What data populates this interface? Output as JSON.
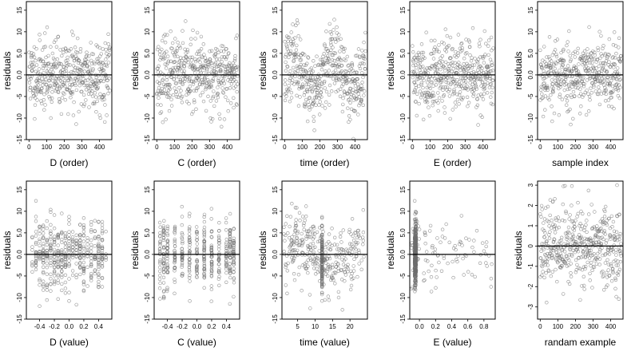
{
  "chart_data": [
    {
      "type": "scatter",
      "xlabel": "D (order)",
      "ylabel": "residuals",
      "xlim": [
        -15,
        470
      ],
      "ylim": [
        -15,
        17
      ],
      "xticks": [
        {
          "v": 0,
          "label": "0"
        },
        {
          "v": 100,
          "label": "100"
        },
        {
          "v": 200,
          "label": "200"
        },
        {
          "v": 300,
          "label": "300"
        },
        {
          "v": 400,
          "label": "400"
        }
      ],
      "yticks": [
        {
          "v": -15,
          "label": "-15"
        },
        {
          "v": -10,
          "label": "-10"
        },
        {
          "v": -5,
          "label": "-5"
        },
        {
          "v": 0,
          "label": "0.0"
        },
        {
          "v": 5,
          "label": "5.0"
        },
        {
          "v": 10,
          "label": "10"
        },
        {
          "v": 15,
          "label": "15"
        }
      ],
      "hline": 0,
      "n": 460,
      "x_kind": "index",
      "seed": 11,
      "spread": 4.5
    },
    {
      "type": "scatter",
      "xlabel": "C (order)",
      "ylabel": "residuals",
      "xlim": [
        -15,
        470
      ],
      "ylim": [
        -15,
        17
      ],
      "xticks": [
        {
          "v": 0,
          "label": "0"
        },
        {
          "v": 100,
          "label": "100"
        },
        {
          "v": 200,
          "label": "200"
        },
        {
          "v": 300,
          "label": "300"
        },
        {
          "v": 400,
          "label": "400"
        }
      ],
      "yticks": [
        {
          "v": -15,
          "label": "-15"
        },
        {
          "v": -10,
          "label": "-10"
        },
        {
          "v": -5,
          "label": "-5"
        },
        {
          "v": 0,
          "label": "0.0"
        },
        {
          "v": 5,
          "label": "5.0"
        },
        {
          "v": 10,
          "label": "10"
        },
        {
          "v": 15,
          "label": "15"
        }
      ],
      "hline": 0,
      "n": 460,
      "x_kind": "index",
      "seed": 23,
      "spread": 4.5
    },
    {
      "type": "scatter",
      "xlabel": "time (order)",
      "ylabel": "residuals",
      "xlim": [
        -15,
        470
      ],
      "ylim": [
        -15,
        17
      ],
      "xticks": [
        {
          "v": 0,
          "label": "0"
        },
        {
          "v": 100,
          "label": "100"
        },
        {
          "v": 200,
          "label": "200"
        },
        {
          "v": 300,
          "label": "300"
        },
        {
          "v": 400,
          "label": "400"
        }
      ],
      "yticks": [
        {
          "v": -15,
          "label": "-15"
        },
        {
          "v": -10,
          "label": "-10"
        },
        {
          "v": -5,
          "label": "-5"
        },
        {
          "v": 0,
          "label": "0.0"
        },
        {
          "v": 5,
          "label": "5.0"
        },
        {
          "v": 10,
          "label": "10"
        },
        {
          "v": 15,
          "label": "15"
        }
      ],
      "hline": 0,
      "n": 460,
      "x_kind": "index_wave",
      "seed": 37,
      "spread": 4.5
    },
    {
      "type": "scatter",
      "xlabel": "E (order)",
      "ylabel": "residuals",
      "xlim": [
        -15,
        470
      ],
      "ylim": [
        -15,
        17
      ],
      "xticks": [
        {
          "v": 0,
          "label": "0"
        },
        {
          "v": 100,
          "label": "100"
        },
        {
          "v": 200,
          "label": "200"
        },
        {
          "v": 300,
          "label": "300"
        },
        {
          "v": 400,
          "label": "400"
        }
      ],
      "yticks": [
        {
          "v": -15,
          "label": "-15"
        },
        {
          "v": -10,
          "label": "-10"
        },
        {
          "v": -5,
          "label": "-5"
        },
        {
          "v": 0,
          "label": "0.0"
        },
        {
          "v": 5,
          "label": "5.0"
        },
        {
          "v": 10,
          "label": "10"
        },
        {
          "v": 15,
          "label": "15"
        }
      ],
      "hline": 0,
      "n": 460,
      "x_kind": "index",
      "seed": 41,
      "spread": 4.5
    },
    {
      "type": "scatter",
      "xlabel": "sample index",
      "ylabel": "residuals",
      "xlim": [
        -15,
        470
      ],
      "ylim": [
        -15,
        17
      ],
      "xticks": [
        {
          "v": 0,
          "label": "0"
        },
        {
          "v": 100,
          "label": "100"
        },
        {
          "v": 200,
          "label": "200"
        },
        {
          "v": 300,
          "label": "300"
        },
        {
          "v": 400,
          "label": "400"
        }
      ],
      "yticks": [
        {
          "v": -15,
          "label": "-15"
        },
        {
          "v": -10,
          "label": "-10"
        },
        {
          "v": -5,
          "label": "-5"
        },
        {
          "v": 0,
          "label": "0.0"
        },
        {
          "v": 5,
          "label": "5.0"
        },
        {
          "v": 10,
          "label": "10"
        },
        {
          "v": 15,
          "label": "15"
        }
      ],
      "hline": 0,
      "n": 460,
      "x_kind": "index",
      "seed": 53,
      "spread": 4.5
    },
    {
      "type": "scatter",
      "xlabel": "D (value)",
      "ylabel": "residuals",
      "xlim": [
        -0.58,
        0.58
      ],
      "ylim": [
        -15,
        17
      ],
      "xticks": [
        {
          "v": -0.4,
          "label": "-0.4"
        },
        {
          "v": -0.2,
          "label": "-0.2"
        },
        {
          "v": 0,
          "label": "0.0"
        },
        {
          "v": 0.2,
          "label": "0.2"
        },
        {
          "v": 0.4,
          "label": "0.4"
        }
      ],
      "yticks": [
        {
          "v": -15,
          "label": "-15"
        },
        {
          "v": -10,
          "label": "-10"
        },
        {
          "v": -5,
          "label": "-5"
        },
        {
          "v": 0,
          "label": "0.0"
        },
        {
          "v": 5,
          "label": "5.0"
        },
        {
          "v": 10,
          "label": "10"
        },
        {
          "v": 15,
          "label": "15"
        }
      ],
      "hline": 0,
      "n": 460,
      "x_kind": "discrete_dense",
      "x_min": -0.5,
      "x_max": 0.5,
      "seed": 61,
      "spread": 4.5
    },
    {
      "type": "scatter",
      "xlabel": "C (value)",
      "ylabel": "residuals",
      "xlim": [
        -0.58,
        0.58
      ],
      "ylim": [
        -15,
        17
      ],
      "xticks": [
        {
          "v": -0.4,
          "label": "-0.4"
        },
        {
          "v": -0.2,
          "label": "-0.2"
        },
        {
          "v": 0,
          "label": "0.0"
        },
        {
          "v": 0.2,
          "label": "0.2"
        },
        {
          "v": 0.4,
          "label": "0.4"
        }
      ],
      "yticks": [
        {
          "v": -15,
          "label": "-15"
        },
        {
          "v": -10,
          "label": "-10"
        },
        {
          "v": -5,
          "label": "-5"
        },
        {
          "v": 0,
          "label": "0.0"
        },
        {
          "v": 5,
          "label": "5.0"
        },
        {
          "v": 10,
          "label": "10"
        },
        {
          "v": 15,
          "label": "15"
        }
      ],
      "hline": 0,
      "n": 460,
      "x_kind": "discrete_columns",
      "x_values": [
        -0.5,
        -0.45,
        -0.4,
        -0.3,
        -0.2,
        -0.1,
        0.0,
        0.1,
        0.2,
        0.3,
        0.4,
        0.45,
        0.5
      ],
      "seed": 71,
      "spread": 4.5
    },
    {
      "type": "scatter",
      "xlabel": "time (value)",
      "ylabel": "residuals",
      "xlim": [
        0.5,
        25
      ],
      "ylim": [
        -15,
        17
      ],
      "xticks": [
        {
          "v": 5,
          "label": "5"
        },
        {
          "v": 10,
          "label": "10"
        },
        {
          "v": 15,
          "label": "15"
        },
        {
          "v": 20,
          "label": "20"
        }
      ],
      "yticks": [
        {
          "v": -15,
          "label": "-15"
        },
        {
          "v": -10,
          "label": "-10"
        },
        {
          "v": -5,
          "label": "-5"
        },
        {
          "v": 0,
          "label": "0.0"
        },
        {
          "v": 5,
          "label": "5.0"
        },
        {
          "v": 10,
          "label": "10"
        },
        {
          "v": 15,
          "label": "15"
        }
      ],
      "hline": 0,
      "n": 460,
      "x_kind": "time_values",
      "x_min": 1,
      "x_max": 24,
      "seed": 83,
      "spread": 4.5
    },
    {
      "type": "scatter",
      "xlabel": "E (value)",
      "ylabel": "residuals",
      "xlim": [
        -0.12,
        0.94
      ],
      "ylim": [
        -15,
        17
      ],
      "xticks": [
        {
          "v": 0.0,
          "label": "0.0"
        },
        {
          "v": 0.2,
          "label": "0.2"
        },
        {
          "v": 0.4,
          "label": "0.4"
        },
        {
          "v": 0.6,
          "label": "0.6"
        },
        {
          "v": 0.8,
          "label": "0.8"
        }
      ],
      "yticks": [
        {
          "v": -15,
          "label": "-15"
        },
        {
          "v": -10,
          "label": "-10"
        },
        {
          "v": -5,
          "label": "-5"
        },
        {
          "v": 0,
          "label": "0.0"
        },
        {
          "v": 5,
          "label": "5.0"
        },
        {
          "v": 10,
          "label": "10"
        },
        {
          "v": 15,
          "label": "15"
        }
      ],
      "hline": 0,
      "n": 460,
      "x_kind": "skewed",
      "x_min": -0.1,
      "x_max": 0.9,
      "seed": 97,
      "spread": 4.5
    },
    {
      "type": "scatter",
      "xlabel": "randam example",
      "ylabel": "residuals",
      "xlim": [
        -15,
        470
      ],
      "ylim": [
        -3.6,
        3.2
      ],
      "xticks": [
        {
          "v": 0,
          "label": "0"
        },
        {
          "v": 100,
          "label": "100"
        },
        {
          "v": 200,
          "label": "200"
        },
        {
          "v": 300,
          "label": "300"
        },
        {
          "v": 400,
          "label": "400"
        }
      ],
      "yticks": [
        {
          "v": -3,
          "label": "-3"
        },
        {
          "v": -2,
          "label": "-2"
        },
        {
          "v": -1,
          "label": "-1"
        },
        {
          "v": 0,
          "label": "0"
        },
        {
          "v": 1,
          "label": "1"
        },
        {
          "v": 2,
          "label": "2"
        },
        {
          "v": 3,
          "label": "3"
        }
      ],
      "hline": 0,
      "n": 460,
      "x_kind": "index",
      "seed": 107,
      "spread": 1.1
    }
  ]
}
